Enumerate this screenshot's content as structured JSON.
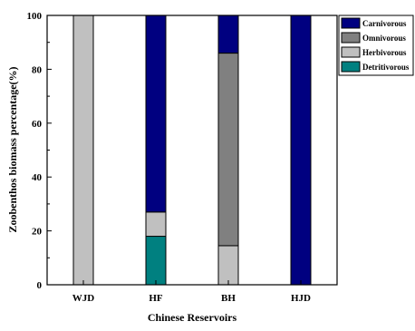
{
  "chart_data": {
    "type": "bar",
    "stacked": true,
    "categories": [
      "WJD",
      "HF",
      "BH",
      "HJD"
    ],
    "series": [
      {
        "name": "Detritivorous",
        "color": "#008080",
        "values": [
          0,
          18,
          0,
          0
        ]
      },
      {
        "name": "Herbivorous",
        "color": "#c0c0c0",
        "values": [
          100,
          9,
          14.5,
          0
        ]
      },
      {
        "name": "Omnivorous",
        "color": "#808080",
        "values": [
          0,
          0,
          71.5,
          0
        ]
      },
      {
        "name": "Carnivorous",
        "color": "#000080",
        "values": [
          0,
          73,
          14,
          100
        ]
      }
    ],
    "legend_order": [
      "Carnivorous",
      "Omnivorous",
      "Herbivorous",
      "Detritivorous"
    ],
    "xlabel": "Chinese Reservoirs",
    "ylabel": "Zoobenthos biomass percentage(%)",
    "ylim": [
      0,
      100
    ],
    "yticks": [
      0,
      20,
      40,
      60,
      80,
      100
    ],
    "grid": false,
    "legend_position": "top-right"
  }
}
